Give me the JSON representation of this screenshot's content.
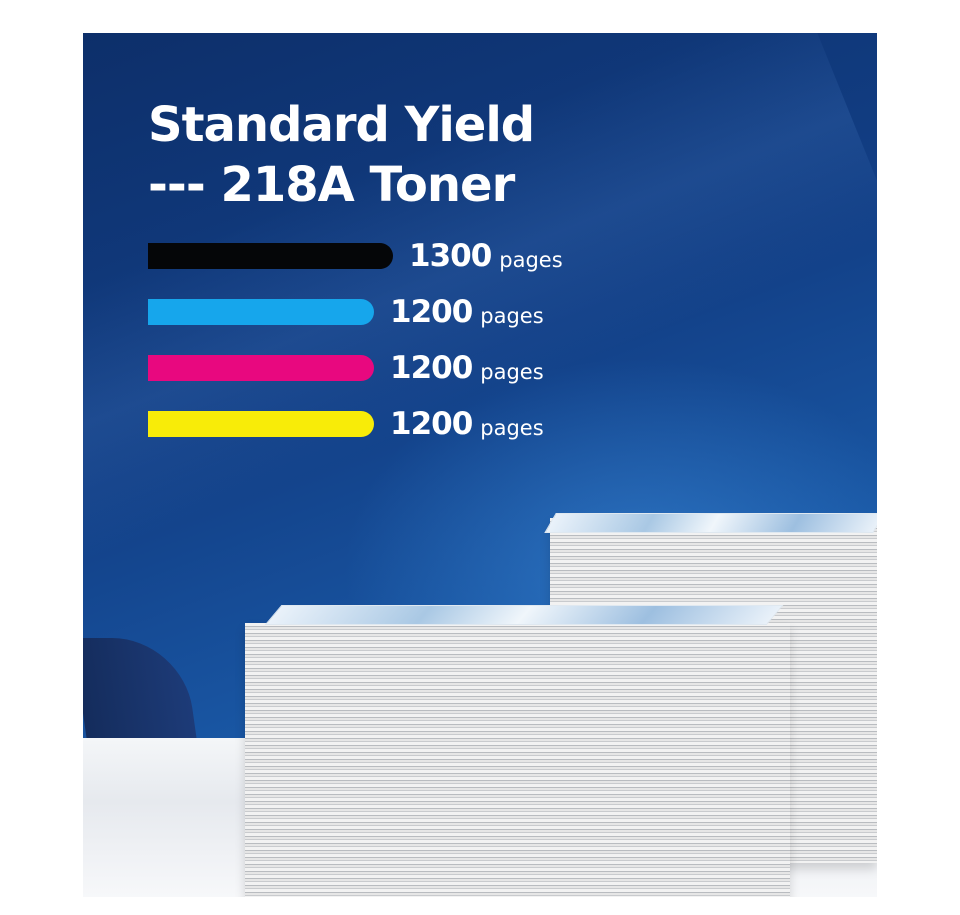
{
  "title": {
    "line1": "Standard Yield",
    "line2": "--- 218A Toner"
  },
  "yields": [
    {
      "color_name": "black",
      "color": "#050608",
      "value": "1300",
      "unit": "pages",
      "pages": 1300
    },
    {
      "color_name": "cyan",
      "color": "#16a6ec",
      "value": "1200",
      "unit": "pages",
      "pages": 1200
    },
    {
      "color_name": "magenta",
      "color": "#e8087f",
      "value": "1200",
      "unit": "pages",
      "pages": 1200
    },
    {
      "color_name": "yellow",
      "color": "#f8ec08",
      "value": "1200",
      "unit": "pages",
      "pages": 1200
    }
  ]
}
